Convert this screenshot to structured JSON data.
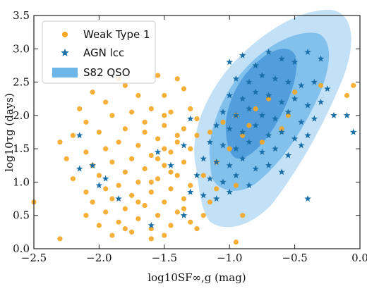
{
  "chart_data": {
    "type": "scatter",
    "xlabel": "log10SF∞,g (mag)",
    "ylabel": "log10τg (days)",
    "xlim": [
      -2.5,
      0.0
    ],
    "ylim": [
      0.0,
      3.5
    ],
    "xticks": [
      -2.5,
      -2.0,
      -1.5,
      -1.0,
      -0.5,
      0.0
    ],
    "yticks": [
      0.0,
      0.5,
      1.0,
      1.5,
      2.0,
      2.5,
      3.0,
      3.5
    ],
    "xtick_labels": [
      "−2.5",
      "−2.0",
      "−1.5",
      "−1.0",
      "−0.5",
      "0.0"
    ],
    "ytick_labels": [
      "0.0",
      "0.5",
      "1.0",
      "1.5",
      "2.0",
      "2.5",
      "3.0",
      "3.5"
    ],
    "grid": false,
    "legend_position": "top-left",
    "colors": {
      "weak_type1": "#f5a623",
      "agn_lcc": "#1a6fa8",
      "contour_outer": "#b9dcf5",
      "contour_mid": "#6db6ea",
      "contour_inner": "#3d8fd6"
    },
    "series": [
      {
        "name": "Weak Type 1",
        "marker": "circle",
        "points": [
          [
            -1.85,
            2.55
          ],
          [
            -1.8,
            2.45
          ],
          [
            -1.55,
            2.6
          ],
          [
            -1.4,
            2.55
          ],
          [
            -1.5,
            2.3
          ],
          [
            -1.7,
            2.3
          ],
          [
            -1.95,
            2.2
          ],
          [
            -2.05,
            2.35
          ],
          [
            -1.35,
            2.4
          ],
          [
            -1.45,
            2.05
          ],
          [
            -1.6,
            2.1
          ],
          [
            -1.75,
            2.05
          ],
          [
            -1.9,
            2.0
          ],
          [
            -2.1,
            1.9
          ],
          [
            -2.15,
            2.1
          ],
          [
            -1.3,
            2.1
          ],
          [
            -1.25,
            1.95
          ],
          [
            -1.35,
            1.8
          ],
          [
            -1.5,
            1.85
          ],
          [
            -1.65,
            1.9
          ],
          [
            -1.8,
            1.8
          ],
          [
            -2.0,
            1.75
          ],
          [
            -2.2,
            1.7
          ],
          [
            -2.3,
            1.6
          ],
          [
            -1.4,
            1.6
          ],
          [
            -1.55,
            1.65
          ],
          [
            -1.7,
            1.55
          ],
          [
            -1.85,
            1.6
          ],
          [
            -1.95,
            1.5
          ],
          [
            -2.1,
            1.45
          ],
          [
            -2.25,
            1.35
          ],
          [
            -1.3,
            1.5
          ],
          [
            -1.45,
            1.45
          ],
          [
            -1.6,
            1.4
          ],
          [
            -1.75,
            1.35
          ],
          [
            -1.9,
            1.3
          ],
          [
            -2.05,
            1.25
          ],
          [
            -1.35,
            1.3
          ],
          [
            -1.5,
            1.25
          ],
          [
            -1.65,
            1.2
          ],
          [
            -1.8,
            1.15
          ],
          [
            -2.0,
            1.1
          ],
          [
            -2.2,
            1.05
          ],
          [
            -1.4,
            1.1
          ],
          [
            -1.55,
            1.05
          ],
          [
            -1.7,
            1.0
          ],
          [
            -1.85,
            0.95
          ],
          [
            -1.95,
            0.9
          ],
          [
            -2.1,
            0.85
          ],
          [
            -1.3,
            0.95
          ],
          [
            -1.45,
            0.9
          ],
          [
            -1.6,
            0.85
          ],
          [
            -1.75,
            0.8
          ],
          [
            -1.9,
            0.75
          ],
          [
            -2.05,
            0.7
          ],
          [
            -1.35,
            0.75
          ],
          [
            -1.5,
            0.7
          ],
          [
            -1.65,
            0.65
          ],
          [
            -1.8,
            0.6
          ],
          [
            -1.95,
            0.55
          ],
          [
            -2.1,
            0.5
          ],
          [
            -1.4,
            0.55
          ],
          [
            -1.55,
            0.5
          ],
          [
            -1.7,
            0.45
          ],
          [
            -1.85,
            0.4
          ],
          [
            -2.0,
            0.35
          ],
          [
            -1.45,
            0.35
          ],
          [
            -1.6,
            0.3
          ],
          [
            -1.75,
            0.25
          ],
          [
            -1.9,
            0.2
          ],
          [
            -1.3,
            0.4
          ],
          [
            -1.2,
            0.5
          ],
          [
            -1.15,
            0.7
          ],
          [
            -1.1,
            0.9
          ],
          [
            -1.2,
            1.1
          ],
          [
            -1.1,
            1.3
          ],
          [
            -1.0,
            1.5
          ],
          [
            -0.9,
            1.7
          ],
          [
            -1.05,
            1.9
          ],
          [
            -0.95,
            2.0
          ],
          [
            -1.15,
            1.75
          ],
          [
            -0.85,
            1.85
          ],
          [
            -0.75,
            1.6
          ],
          [
            -0.8,
            2.1
          ],
          [
            -0.7,
            2.25
          ],
          [
            -0.6,
            1.8
          ],
          [
            -0.5,
            2.35
          ],
          [
            -0.55,
            2.0
          ],
          [
            -0.95,
            0.95
          ],
          [
            -0.9,
            0.5
          ],
          [
            -0.95,
            0.1
          ],
          [
            -2.5,
            0.7
          ],
          [
            -2.3,
            0.15
          ],
          [
            -1.65,
            1.75
          ],
          [
            -1.5,
            1.5
          ],
          [
            -1.6,
            1.0
          ],
          [
            -1.7,
            0.7
          ],
          [
            -1.5,
            2.0
          ],
          [
            -1.4,
            1.7
          ],
          [
            -1.55,
            1.35
          ],
          [
            -1.45,
            1.15
          ],
          [
            -1.35,
            0.6
          ],
          [
            -1.25,
            0.3
          ],
          [
            -1.25,
            1.7
          ],
          [
            -0.3,
            2.45
          ],
          [
            -0.05,
            2.45
          ],
          [
            -0.1,
            2.3
          ],
          [
            -1.6,
            0.15
          ],
          [
            -1.5,
            0.2
          ],
          [
            -1.8,
            0.3
          ]
        ]
      },
      {
        "name": "AGN lcc",
        "marker": "star",
        "points": [
          [
            -1.0,
            2.8
          ],
          [
            -0.9,
            2.9
          ],
          [
            -0.8,
            2.75
          ],
          [
            -0.7,
            2.95
          ],
          [
            -0.6,
            2.85
          ],
          [
            -0.5,
            2.8
          ],
          [
            -0.4,
            2.95
          ],
          [
            -0.3,
            2.85
          ],
          [
            -0.95,
            2.55
          ],
          [
            -0.85,
            2.5
          ],
          [
            -0.75,
            2.6
          ],
          [
            -0.65,
            2.55
          ],
          [
            -0.55,
            2.5
          ],
          [
            -0.45,
            2.45
          ],
          [
            -0.35,
            2.5
          ],
          [
            -0.25,
            2.4
          ],
          [
            -1.0,
            2.3
          ],
          [
            -0.9,
            2.25
          ],
          [
            -0.8,
            2.35
          ],
          [
            -0.7,
            2.3
          ],
          [
            -0.6,
            2.2
          ],
          [
            -0.5,
            2.25
          ],
          [
            -0.4,
            2.15
          ],
          [
            -0.3,
            2.2
          ],
          [
            -1.05,
            2.05
          ],
          [
            -0.95,
            2.0
          ],
          [
            -0.85,
            2.1
          ],
          [
            -0.75,
            2.0
          ],
          [
            -0.65,
            1.95
          ],
          [
            -0.55,
            2.05
          ],
          [
            -0.45,
            1.9
          ],
          [
            -0.35,
            1.95
          ],
          [
            -1.1,
            1.85
          ],
          [
            -1.0,
            1.8
          ],
          [
            -0.9,
            1.75
          ],
          [
            -0.8,
            1.85
          ],
          [
            -0.7,
            1.7
          ],
          [
            -0.6,
            1.75
          ],
          [
            -0.5,
            1.65
          ],
          [
            -0.4,
            1.7
          ],
          [
            -1.15,
            1.6
          ],
          [
            -1.05,
            1.55
          ],
          [
            -0.95,
            1.5
          ],
          [
            -0.85,
            1.6
          ],
          [
            -0.75,
            1.45
          ],
          [
            -0.65,
            1.5
          ],
          [
            -0.55,
            1.4
          ],
          [
            -0.45,
            1.55
          ],
          [
            -1.2,
            1.35
          ],
          [
            -1.1,
            1.3
          ],
          [
            -1.0,
            1.25
          ],
          [
            -0.9,
            1.35
          ],
          [
            -0.8,
            1.2
          ],
          [
            -0.7,
            1.25
          ],
          [
            -0.6,
            1.15
          ],
          [
            -1.25,
            1.1
          ],
          [
            -1.15,
            1.05
          ],
          [
            -1.05,
            1.0
          ],
          [
            -0.95,
            1.1
          ],
          [
            -0.85,
            0.95
          ],
          [
            -1.3,
            0.85
          ],
          [
            -1.2,
            0.8
          ],
          [
            -1.1,
            0.75
          ],
          [
            -1.0,
            0.85
          ],
          [
            -2.15,
            1.7
          ],
          [
            -2.05,
            1.25
          ],
          [
            -1.95,
            1.05
          ],
          [
            -2.0,
            0.95
          ],
          [
            -2.15,
            1.2
          ],
          [
            -1.85,
            0.75
          ],
          [
            -1.6,
            0.35
          ],
          [
            -1.35,
            0.5
          ],
          [
            -0.4,
            0.75
          ],
          [
            -0.1,
            2.0
          ],
          [
            -0.05,
            1.75
          ],
          [
            -0.2,
            2.0
          ],
          [
            -1.55,
            1.45
          ],
          [
            -1.45,
            1.25
          ],
          [
            -1.35,
            1.55
          ],
          [
            -1.3,
            1.95
          ]
        ]
      },
      {
        "name": "S82 QSO",
        "marker": "filled-contour"
      }
    ]
  }
}
